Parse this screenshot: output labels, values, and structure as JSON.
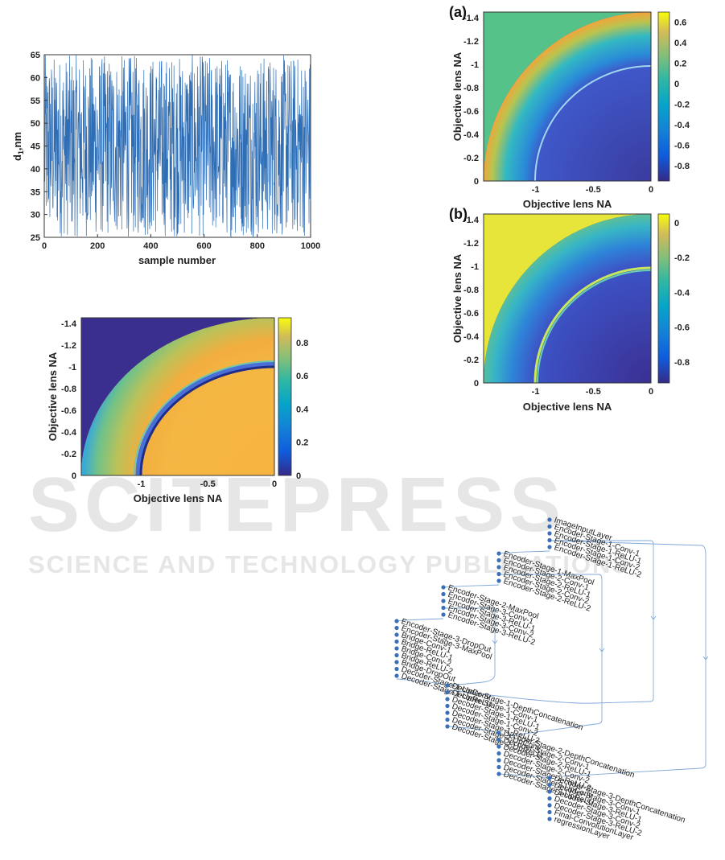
{
  "watermark": {
    "word": "SCITEPRESS",
    "tagline": "SCIENCE AND TECHNOLOGY PUBLICATIONS"
  },
  "chart_data": [
    {
      "id": "line",
      "type": "line",
      "xlabel": "sample number",
      "ylabel_main": "d",
      "ylabel_sub": "1",
      "ylabel_tail": ",nm",
      "xlim": [
        0,
        1000
      ],
      "ylim": [
        25,
        65
      ],
      "xticks": [
        0,
        200,
        400,
        600,
        800,
        1000
      ],
      "yticks": [
        25,
        30,
        35,
        40,
        45,
        50,
        55,
        60,
        65
      ],
      "series": [
        {
          "n_points": 1000,
          "min": 25,
          "max": 65,
          "color": "#2f6eb5"
        }
      ]
    },
    {
      "id": "heat-c",
      "type": "heatmap",
      "xlabel": "Objective lens NA",
      "ylabel": "Objective lens NA",
      "xticks": [
        "-1",
        "-0.5",
        "0"
      ],
      "yticks": [
        "-1.4",
        "-1.2",
        "-1",
        "-0.8",
        "-0.6",
        "-0.4",
        "-0.2",
        "0"
      ],
      "cticks": [
        "0",
        "0.2",
        "0.4",
        "0.6",
        "0.8"
      ],
      "clim": [
        0,
        0.95
      ]
    },
    {
      "id": "heat-a",
      "type": "heatmap",
      "panel": "(a)",
      "xlabel": "Objective lens NA",
      "ylabel": "Objective lens NA",
      "xticks": [
        "-1",
        "-0.5",
        "0"
      ],
      "yticks": [
        "-1.4",
        "-1.2",
        "-1",
        "-0.8",
        "-0.6",
        "-0.4",
        "-0.2",
        "0"
      ],
      "cticks": [
        "0.6",
        "0.4",
        "0.2",
        "0",
        "-0.2",
        "-0.4",
        "-0.6",
        "-0.8"
      ],
      "clim": [
        -0.95,
        0.7
      ]
    },
    {
      "id": "heat-b",
      "type": "heatmap",
      "panel": "(b)",
      "xlabel": "Objective lens NA",
      "ylabel": "Objective lens NA",
      "xticks": [
        "-1",
        "-0.5",
        "0"
      ],
      "yticks": [
        "-1.4",
        "-1.2",
        "-1",
        "-0.8",
        "-0.6",
        "-0.4",
        "-0.2",
        "0"
      ],
      "cticks": [
        "0",
        "-0.2",
        "-0.4",
        "-0.6",
        "-0.8"
      ],
      "clim": [
        -0.92,
        0.05
      ]
    }
  ],
  "network": {
    "groups": [
      {
        "name": "group-1",
        "layers": [
          "ImageInputLayer",
          "Encoder-Stage-1-Conv-1",
          "Encoder-Stage-1-ReLU-1",
          "Encoder-Stage-1-Conv-2",
          "Encoder-Stage-1-ReLU-2"
        ]
      },
      {
        "name": "group-2",
        "layers": [
          "Encoder-Stage-1-MaxPool",
          "Encoder-Stage-2-Conv-1",
          "Encoder-Stage-2-ReLU-1",
          "Encoder-Stage-2-Conv-2",
          "Encoder-Stage-2-ReLU-2"
        ]
      },
      {
        "name": "group-3",
        "layers": [
          "Encoder-Stage-2-MaxPool",
          "Encoder-Stage-3-Conv-1",
          "Encoder-Stage-3-ReLU-1",
          "Encoder-Stage-3-Conv-2",
          "Encoder-Stage-3-ReLU-2"
        ]
      },
      {
        "name": "group-4",
        "layers": [
          "Encoder-Stage-3-DropOut",
          "Encoder-Stage-3-MaxPool",
          "Bridge-Conv-1",
          "Bridge-ReLU-1",
          "Bridge-Conv-2",
          "Bridge-ReLU-2",
          "Bridge-DropOut",
          "Decoder-Stage-1-UpConv",
          "Decoder-Stage-1-UpReLU"
        ]
      },
      {
        "name": "group-5",
        "layers": [
          "Decoder-Stage-1-DepthConcatenation",
          "Decoder-Stage-1-Conv-1",
          "Decoder-Stage-1-ReLU-1",
          "Decoder-Stage-1-Conv-2",
          "Decoder-Stage-1-ReLU-2",
          "Decoder-Stage-2-UpConv",
          "Decoder-Stage-2-UpReLU"
        ]
      },
      {
        "name": "group-6",
        "layers": [
          "Decoder-Stage-2-DepthConcatenation",
          "Decoder-Stage-2-Conv-1",
          "Decoder-Stage-2-ReLU-1",
          "Decoder-Stage-2-Conv-2",
          "Decoder-Stage-2-ReLU-2",
          "Decoder-Stage-3-UpConv",
          "Decoder-Stage-3-UpReLU"
        ]
      },
      {
        "name": "group-7",
        "layers": [
          "Decoder-Stage-3-DepthConcatenation",
          "Decoder-Stage-3-Conv-1",
          "Decoder-Stage-3-ReLU-1",
          "Decoder-Stage-3-Conv-2",
          "Decoder-Stage-3-ReLU-2",
          "Final-ConvolutionLayer",
          "regressionLayer"
        ]
      }
    ]
  },
  "colors": {
    "line": "#2f6eb5",
    "node": "#3b6fb6",
    "edge": "#7fa8d8"
  }
}
